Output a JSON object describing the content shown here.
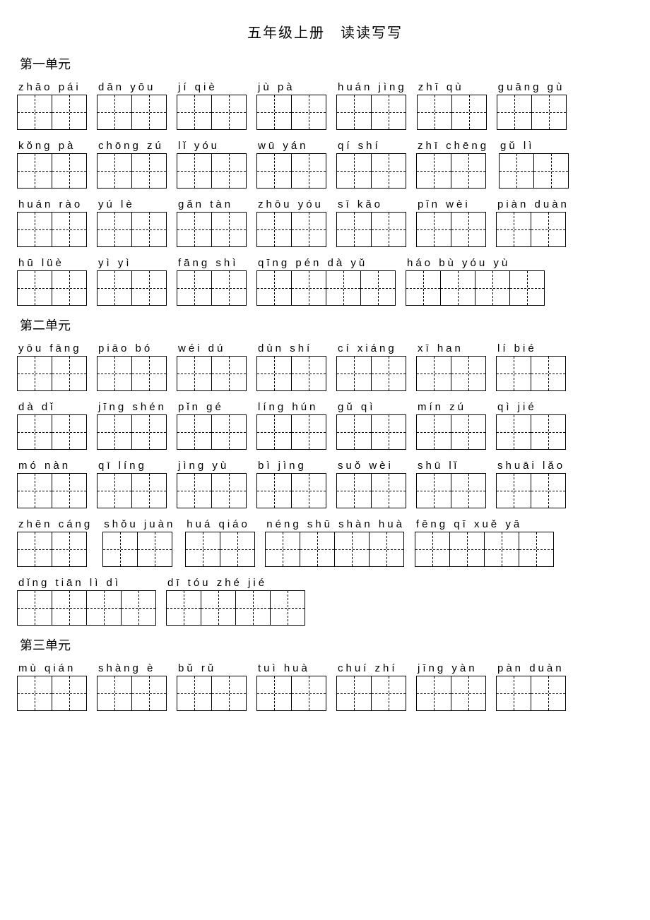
{
  "colors": {
    "background": "#ffffff",
    "text": "#000000",
    "border": "#000000",
    "dash": "#000000"
  },
  "title": "五年级上册　读读写写",
  "sections": [
    {
      "heading": "第一单元",
      "rows": [
        [
          {
            "pinyin": "zhāo pái",
            "cells": 2
          },
          {
            "pinyin": "dān yōu",
            "cells": 2
          },
          {
            "pinyin": "jí qiè",
            "cells": 2
          },
          {
            "pinyin": "jù pà",
            "cells": 2
          },
          {
            "pinyin": "huán jìng",
            "cells": 2
          },
          {
            "pinyin": "zhī qù",
            "cells": 2
          },
          {
            "pinyin": "guāng gù",
            "cells": 2
          }
        ],
        [
          {
            "pinyin": "kǒng pà",
            "cells": 2
          },
          {
            "pinyin": "chōng zú",
            "cells": 2
          },
          {
            "pinyin": "lǐ yóu",
            "cells": 2
          },
          {
            "pinyin": "wū yán",
            "cells": 2
          },
          {
            "pinyin": "qí shí",
            "cells": 2
          },
          {
            "pinyin": "zhī chēng",
            "cells": 2
          },
          {
            "pinyin": "gǔ lì",
            "cells": 2
          }
        ],
        [
          {
            "pinyin": "huán rào",
            "cells": 2
          },
          {
            "pinyin": "yú lè",
            "cells": 2
          },
          {
            "pinyin": "gǎn tàn",
            "cells": 2
          },
          {
            "pinyin": "zhōu yóu",
            "cells": 2
          },
          {
            "pinyin": "sī kǎo",
            "cells": 2
          },
          {
            "pinyin": "pǐn wèi",
            "cells": 2
          },
          {
            "pinyin": "piàn duàn",
            "cells": 2
          }
        ],
        [
          {
            "pinyin": "hū lüè",
            "cells": 2
          },
          {
            "pinyin": "yì yì",
            "cells": 2
          },
          {
            "pinyin": "fāng shì",
            "cells": 2
          },
          {
            "pinyin": "qīng pén dà yǔ",
            "cells": 4
          },
          {
            "pinyin": "háo bù yóu yù",
            "cells": 4
          }
        ]
      ]
    },
    {
      "heading": "第二单元",
      "rows": [
        [
          {
            "pinyin": "yōu fāng",
            "cells": 2
          },
          {
            "pinyin": "piāo bó",
            "cells": 2
          },
          {
            "pinyin": "wéi dú",
            "cells": 2
          },
          {
            "pinyin": "dùn shí",
            "cells": 2
          },
          {
            "pinyin": "cí xiáng",
            "cells": 2
          },
          {
            "pinyin": "xī han",
            "cells": 2
          },
          {
            "pinyin": "lí bié",
            "cells": 2
          }
        ],
        [
          {
            "pinyin": "dà dǐ",
            "cells": 2
          },
          {
            "pinyin": "jīng shén",
            "cells": 2
          },
          {
            "pinyin": "pǐn gé",
            "cells": 2
          },
          {
            "pinyin": "líng hún",
            "cells": 2
          },
          {
            "pinyin": "gǔ qì",
            "cells": 2
          },
          {
            "pinyin": "mín zú",
            "cells": 2
          },
          {
            "pinyin": "qì jié",
            "cells": 2
          }
        ],
        [
          {
            "pinyin": "mó nàn",
            "cells": 2
          },
          {
            "pinyin": "qī líng",
            "cells": 2
          },
          {
            "pinyin": "jìng yù",
            "cells": 2
          },
          {
            "pinyin": "bì jìng",
            "cells": 2
          },
          {
            "pinyin": "suǒ wèi",
            "cells": 2
          },
          {
            "pinyin": "shū lǐ",
            "cells": 2
          },
          {
            "pinyin": "shuāi lǎo",
            "cells": 2
          }
        ],
        [
          {
            "pinyin": "zhēn cáng",
            "cells": 2
          },
          {
            "pinyin": "shǒu juàn",
            "cells": 2
          },
          {
            "pinyin": "huá qiáo",
            "cells": 2
          },
          {
            "pinyin": "néng shū shàn huà",
            "cells": 4
          },
          {
            "pinyin": "fēng qī xuě yā",
            "cells": 4
          }
        ],
        [
          {
            "pinyin": "dǐng tiān lì dì",
            "cells": 4
          },
          {
            "pinyin": "dī tóu zhé jié",
            "cells": 4
          }
        ]
      ]
    },
    {
      "heading": "第三单元",
      "rows": [
        [
          {
            "pinyin": "mù qián",
            "cells": 2
          },
          {
            "pinyin": "shàng è",
            "cells": 2
          },
          {
            "pinyin": "bǔ rǔ",
            "cells": 2
          },
          {
            "pinyin": "tuì huà",
            "cells": 2
          },
          {
            "pinyin": "chuí zhí",
            "cells": 2
          },
          {
            "pinyin": "jīng yàn",
            "cells": 2
          },
          {
            "pinyin": "pàn duàn",
            "cells": 2
          }
        ]
      ]
    }
  ]
}
